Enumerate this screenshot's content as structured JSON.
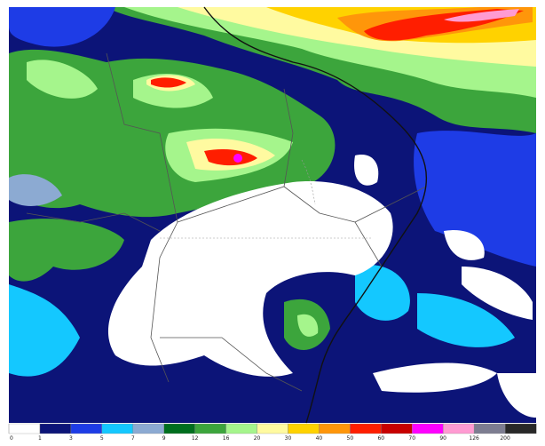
{
  "legend": {
    "ticks": [
      0,
      1,
      3,
      5,
      7,
      9,
      12,
      16,
      20,
      30,
      40,
      50,
      60,
      70,
      90,
      126,
      200
    ],
    "colors": [
      "#ffffff",
      "#0c1478",
      "#1e3ce6",
      "#14c8ff",
      "#8caad2",
      "#006e1e",
      "#3ca53c",
      "#a5f58c",
      "#fffaa0",
      "#ffd200",
      "#ff960a",
      "#ff1e00",
      "#c80000",
      "#ff00ff",
      "#ff9bd2",
      "#7d7d91",
      "#282828"
    ]
  }
}
